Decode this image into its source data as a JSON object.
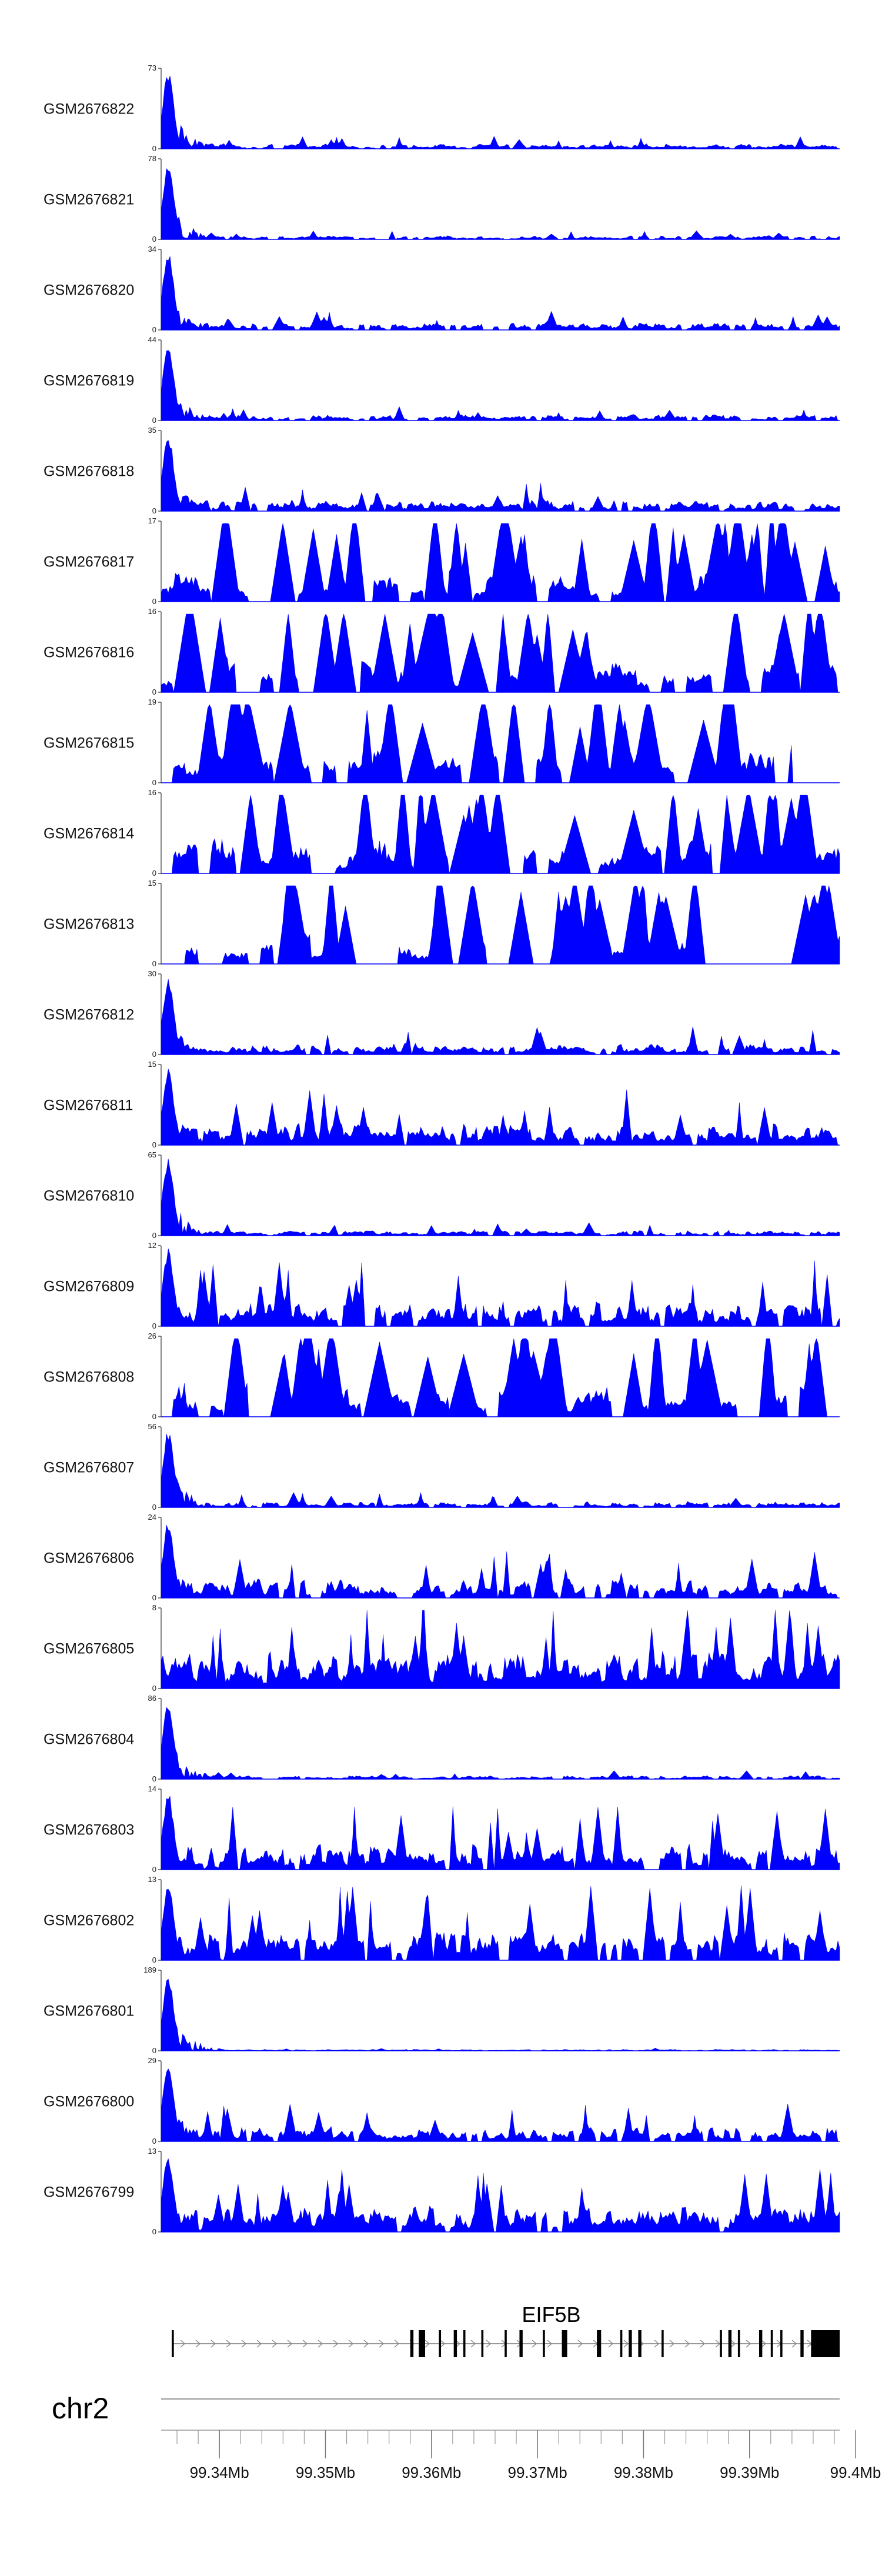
{
  "chart_data": {
    "type": "area",
    "title": "",
    "chromosome": "chr2",
    "gene": "EIF5B",
    "x_unit": "Mb",
    "x_range": [
      99.3345,
      99.3985
    ],
    "x_ticks": [
      {
        "value": 99.34,
        "label": "99.34Mb"
      },
      {
        "value": 99.35,
        "label": "99.35Mb"
      },
      {
        "value": 99.36,
        "label": "99.36Mb"
      },
      {
        "value": 99.37,
        "label": "99.37Mb"
      },
      {
        "value": 99.38,
        "label": "99.38Mb"
      },
      {
        "value": 99.39,
        "label": "99.39Mb"
      },
      {
        "value": 99.4,
        "label": "99.4Mb"
      }
    ],
    "minor_tick_step_mb": 0.002,
    "fill_color": "#0000ff",
    "tracks": [
      {
        "name": "GSM2676822",
        "ymin": 0,
        "ymax": 73,
        "ymin_label": "0",
        "ymax_label": "73",
        "seed": 1,
        "profile": "peak5",
        "fill": 0.55,
        "noise": 0.07,
        "spikes": 0.5
      },
      {
        "name": "GSM2676821",
        "ymin": 0,
        "ymax": 78,
        "ymin_label": "0",
        "ymax_label": "78",
        "seed": 2,
        "profile": "peak5",
        "fill": 0.55,
        "noise": 0.05,
        "spikes": 0.4
      },
      {
        "name": "GSM2676820",
        "ymin": 0,
        "ymax": 34,
        "ymin_label": "0",
        "ymax_label": "34",
        "seed": 3,
        "profile": "peak5",
        "fill": 0.7,
        "noise": 0.1,
        "spikes": 0.5
      },
      {
        "name": "GSM2676819",
        "ymin": 0,
        "ymax": 44,
        "ymin_label": "0",
        "ymax_label": "44",
        "seed": 4,
        "profile": "peak5",
        "fill": 0.6,
        "noise": 0.08,
        "spikes": 0.4
      },
      {
        "name": "GSM2676818",
        "ymin": 0,
        "ymax": 35,
        "ymin_label": "0",
        "ymax_label": "35",
        "seed": 5,
        "profile": "peak4",
        "fill": 0.35,
        "noise": 0.15,
        "spikes": 0.35
      },
      {
        "name": "GSM2676817",
        "ymin": 0,
        "ymax": 17,
        "ymin_label": "0",
        "ymax_label": "17",
        "seed": 6,
        "profile": "sparse",
        "fill": 0.55,
        "noise": 0.45,
        "spikes": 1.0
      },
      {
        "name": "GSM2676816",
        "ymin": 0,
        "ymax": 16,
        "ymin_label": "0",
        "ymax_label": "16",
        "seed": 7,
        "profile": "sparse",
        "fill": 0.6,
        "noise": 0.45,
        "spikes": 1.0
      },
      {
        "name": "GSM2676815",
        "ymin": 0,
        "ymax": 19,
        "ymin_label": "0",
        "ymax_label": "19",
        "seed": 8,
        "profile": "verysparse",
        "fill": 0.3,
        "noise": 0.45,
        "spikes": 1.0
      },
      {
        "name": "GSM2676814",
        "ymin": 0,
        "ymax": 16,
        "ymin_label": "0",
        "ymax_label": "16",
        "seed": 9,
        "profile": "sparse",
        "fill": 0.6,
        "noise": 0.45,
        "spikes": 1.0
      },
      {
        "name": "GSM2676813",
        "ymin": 0,
        "ymax": 15,
        "ymin_label": "0",
        "ymax_label": "15",
        "seed": 10,
        "profile": "verysparse",
        "fill": 0.45,
        "noise": 0.45,
        "spikes": 1.0
      },
      {
        "name": "GSM2676812",
        "ymin": 0,
        "ymax": 30,
        "ymin_label": "0",
        "ymax_label": "30",
        "seed": 11,
        "profile": "peak3",
        "fill": 0.55,
        "noise": 0.15,
        "spikes": 0.4
      },
      {
        "name": "GSM2676811",
        "ymin": 0,
        "ymax": 15,
        "ymin_label": "0",
        "ymax_label": "15",
        "seed": 12,
        "profile": "peak2",
        "fill": 0.55,
        "noise": 0.3,
        "spikes": 0.6
      },
      {
        "name": "GSM2676810",
        "ymin": 0,
        "ymax": 65,
        "ymin_label": "0",
        "ymax_label": "65",
        "seed": 13,
        "profile": "peak5",
        "fill": 0.6,
        "noise": 0.07,
        "spikes": 0.4
      },
      {
        "name": "GSM2676809",
        "ymin": 0,
        "ymax": 12,
        "ymin_label": "0",
        "ymax_label": "12",
        "seed": 14,
        "profile": "peak2",
        "fill": 0.6,
        "noise": 0.35,
        "spikes": 0.7
      },
      {
        "name": "GSM2676808",
        "ymin": 0,
        "ymax": 26,
        "ymin_label": "0",
        "ymax_label": "26",
        "seed": 15,
        "profile": "sparse",
        "fill": 0.6,
        "noise": 0.45,
        "spikes": 1.0
      },
      {
        "name": "GSM2676807",
        "ymin": 0,
        "ymax": 56,
        "ymin_label": "0",
        "ymax_label": "56",
        "seed": 16,
        "profile": "peak5",
        "fill": 0.6,
        "noise": 0.08,
        "spikes": 0.4
      },
      {
        "name": "GSM2676806",
        "ymin": 0,
        "ymax": 24,
        "ymin_label": "0",
        "ymax_label": "24",
        "seed": 17,
        "profile": "peak3",
        "fill": 0.55,
        "noise": 0.25,
        "spikes": 0.6
      },
      {
        "name": "GSM2676805",
        "ymin": 0,
        "ymax": 8,
        "ymin_label": "0",
        "ymax_label": "8",
        "seed": 18,
        "profile": "dense",
        "fill": 0.95,
        "noise": 0.5,
        "spikes": 1.0
      },
      {
        "name": "GSM2676804",
        "ymin": 0,
        "ymax": 86,
        "ymin_label": "0",
        "ymax_label": "86",
        "seed": 19,
        "profile": "peak5",
        "fill": 0.6,
        "noise": 0.05,
        "spikes": 0.3
      },
      {
        "name": "GSM2676803",
        "ymin": 0,
        "ymax": 14,
        "ymin_label": "0",
        "ymax_label": "14",
        "seed": 20,
        "profile": "peak2",
        "fill": 0.7,
        "noise": 0.35,
        "spikes": 0.7
      },
      {
        "name": "GSM2676802",
        "ymin": 0,
        "ymax": 13,
        "ymin_label": "0",
        "ymax_label": "13",
        "seed": 21,
        "profile": "peak2",
        "fill": 0.55,
        "noise": 0.4,
        "spikes": 0.8
      },
      {
        "name": "GSM2676801",
        "ymin": 0,
        "ymax": 189,
        "ymin_label": "0",
        "ymax_label": "189",
        "seed": 22,
        "profile": "peak6",
        "fill": 0.5,
        "noise": 0.02,
        "spikes": 0.2
      },
      {
        "name": "GSM2676800",
        "ymin": 0,
        "ymax": 29,
        "ymin_label": "0",
        "ymax_label": "29",
        "seed": 23,
        "profile": "peak3",
        "fill": 0.6,
        "noise": 0.2,
        "spikes": 0.5
      },
      {
        "name": "GSM2676799",
        "ymin": 0,
        "ymax": 13,
        "ymin_label": "0",
        "ymax_label": "13",
        "seed": 24,
        "profile": "peak2",
        "fill": 0.75,
        "noise": 0.35,
        "spikes": 0.7
      }
    ],
    "gene_model": {
      "name": "EIF5B",
      "strand": "+",
      "start_mb": 99.3355,
      "end_mb": 99.3985,
      "exons_mb": [
        [
          99.3355,
          99.3357
        ],
        [
          99.358,
          99.3583
        ],
        [
          99.3588,
          99.3594
        ],
        [
          99.3607,
          99.3609
        ],
        [
          99.3621,
          99.3624
        ],
        [
          99.363,
          99.3632
        ],
        [
          99.3647,
          99.3649
        ],
        [
          99.3669,
          99.3671
        ],
        [
          99.3683,
          99.3686
        ],
        [
          99.3705,
          99.3707
        ],
        [
          99.3723,
          99.3728
        ],
        [
          99.3756,
          99.376
        ],
        [
          99.3778,
          99.378
        ],
        [
          99.3786,
          99.3789
        ],
        [
          99.3795,
          99.3798
        ],
        [
          99.3817,
          99.3819
        ],
        [
          99.3872,
          99.3874
        ],
        [
          99.388,
          99.3883
        ],
        [
          99.3889,
          99.3891
        ],
        [
          99.3909,
          99.3912
        ],
        [
          99.392,
          99.3922
        ],
        [
          99.3929,
          99.3931
        ],
        [
          99.3948,
          99.3951
        ],
        [
          99.3958,
          99.3985
        ]
      ]
    }
  }
}
